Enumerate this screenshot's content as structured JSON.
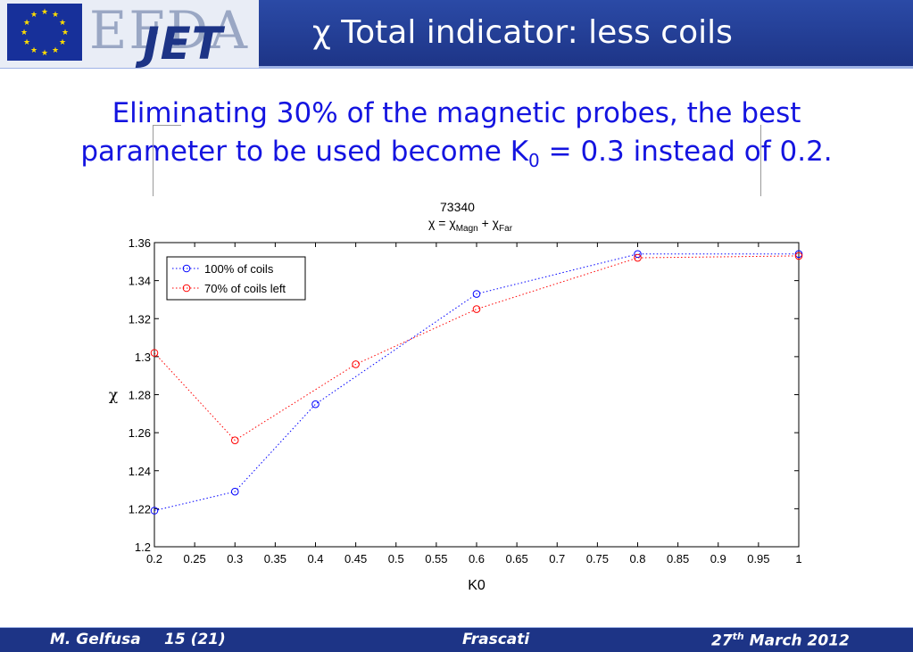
{
  "header": {
    "logo_efda": "EFDA",
    "logo_jet": "JET",
    "title": "χ Total indicator: less coils"
  },
  "subtitle": {
    "line1": "Eliminating 30% of the magnetic probes, the best",
    "line2_pre": "parameter to be used become K",
    "line2_sub": "0",
    "line2_post": " = 0.3 instead of 0.2."
  },
  "chart_data": {
    "type": "line",
    "title": "73340",
    "subtitle_parts": {
      "chi": "χ",
      "eq": " = ",
      "term1_sub": "Magn",
      "plus": " + ",
      "term2_sub": "Far"
    },
    "xlabel": "K0",
    "ylabel": "χ",
    "xlim": [
      0.2,
      1
    ],
    "ylim": [
      1.2,
      1.36
    ],
    "xticks": [
      "0.2",
      "0.25",
      "0.3",
      "0.35",
      "0.4",
      "0.45",
      "0.5",
      "0.55",
      "0.6",
      "0.65",
      "0.7",
      "0.75",
      "0.8",
      "0.85",
      "0.9",
      "0.95",
      "1"
    ],
    "yticks": [
      "1.2",
      "1.22",
      "1.24",
      "1.26",
      "1.28",
      "1.3",
      "1.32",
      "1.34",
      "1.36"
    ],
    "legend_position": "top-left",
    "series": [
      {
        "name": "100% of coils",
        "color": "#0000ff",
        "x": [
          0.2,
          0.3,
          0.4,
          0.6,
          0.8,
          1.0
        ],
        "y": [
          1.219,
          1.229,
          1.275,
          1.333,
          1.354,
          1.354
        ]
      },
      {
        "name": "70% of coils left",
        "color": "#ff0000",
        "x": [
          0.2,
          0.3,
          0.45,
          0.6,
          0.8,
          1.0
        ],
        "y": [
          1.302,
          1.256,
          1.296,
          1.325,
          1.352,
          1.353
        ]
      }
    ]
  },
  "footer": {
    "author": "M. Gelfusa",
    "page": "15 (21)",
    "location": "Frascati",
    "date_day": "27",
    "date_sup": "th",
    "date_rest": " March 2012"
  }
}
